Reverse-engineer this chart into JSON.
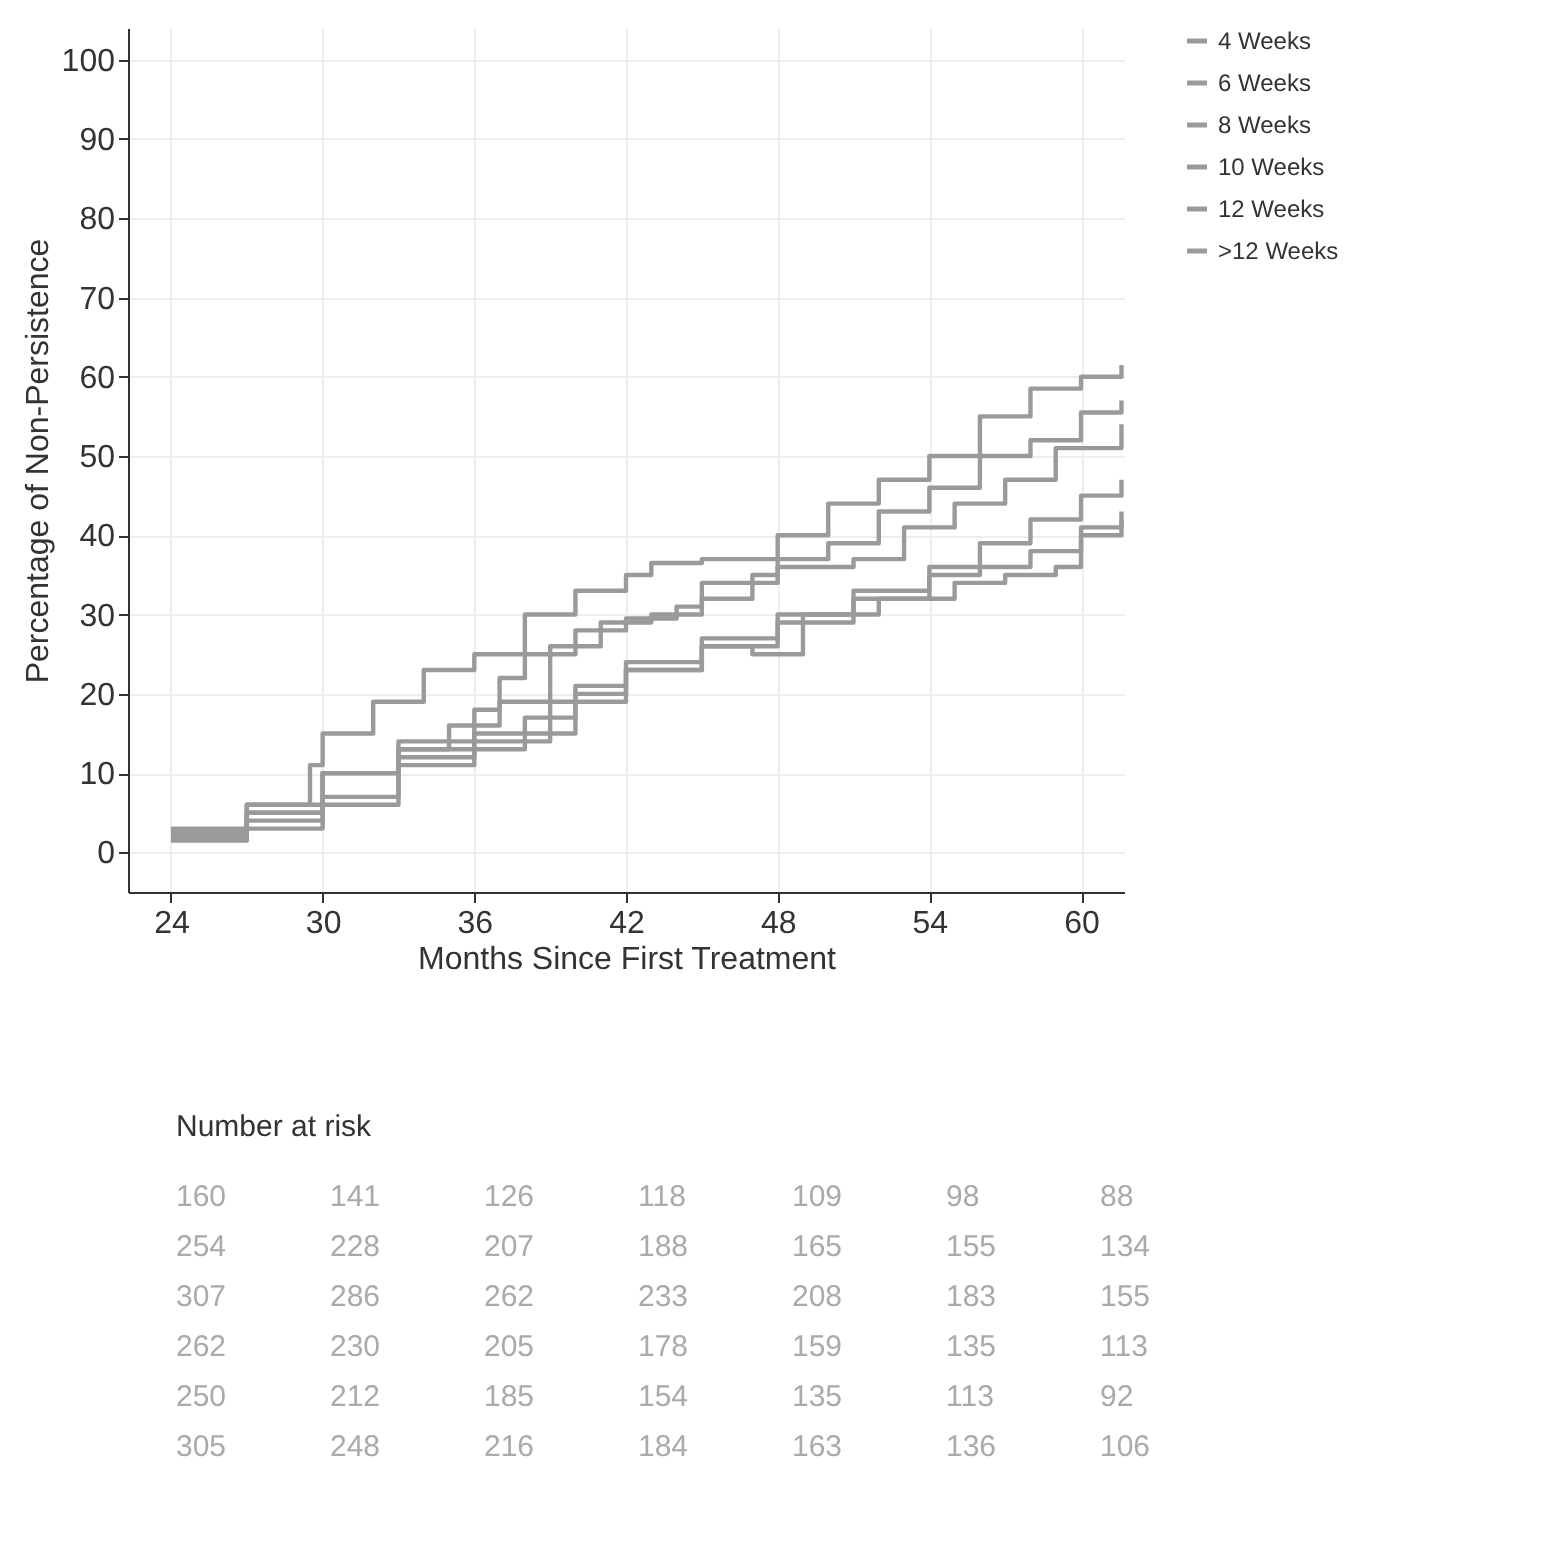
{
  "chart_data": {
    "type": "step",
    "xlabel": "Months Since First Treatment",
    "ylabel": "Percentage of Non-Persistence",
    "xlim": [
      22.3,
      61.7
    ],
    "xticks": [
      24,
      30,
      36,
      42,
      48,
      54,
      60
    ],
    "ylim": [
      -5,
      104
    ],
    "yticks": [
      0,
      10,
      20,
      30,
      40,
      50,
      60,
      70,
      80,
      90,
      100
    ],
    "grid": true,
    "legend": "right",
    "line_style": "solid",
    "marker": "none",
    "annotations": [
      "Number at risk",
      "160 141 126 118 109 98 88",
      "254 228 207 188 165 155 134",
      "307 286 262 233 208 183 155",
      "262 230 205 178 159 135 113",
      "250 212 185 154 135 113 92",
      "305 248 216 184 163 136 106"
    ],
    "series": [
      {
        "name": "4 Weeks",
        "color": "#9a9a9a",
        "x": [
          24,
          27,
          29.5,
          30,
          32,
          34,
          36,
          38,
          40,
          42,
          43,
          45,
          48,
          50,
          52,
          54,
          56,
          58,
          60,
          61.6
        ],
        "values": [
          3,
          6,
          11,
          15,
          19,
          23,
          25,
          30,
          33,
          35,
          36.5,
          37,
          40,
          44,
          47,
          50,
          55,
          58.5,
          60,
          61.5
        ]
      },
      {
        "name": "6 Weeks",
        "color": "#9a9a9a",
        "x": [
          24,
          27,
          30,
          33,
          35,
          36,
          37,
          38,
          40,
          42,
          44,
          45,
          48,
          50,
          52,
          54,
          56,
          58,
          60,
          61.6
        ],
        "values": [
          2.5,
          6,
          10,
          13,
          16,
          18,
          22,
          25,
          28,
          29.5,
          31,
          34,
          37,
          39,
          43,
          46,
          50,
          52,
          55.5,
          57
        ]
      },
      {
        "name": "8 Weeks",
        "color": "#9a9a9a",
        "x": [
          24,
          27,
          30,
          33,
          36,
          37,
          39,
          41,
          43,
          45,
          47,
          48,
          51,
          53,
          55,
          57,
          59,
          61.6
        ],
        "values": [
          2,
          5,
          10,
          14,
          16,
          19,
          26,
          29,
          30,
          32,
          35,
          36,
          37,
          41,
          44,
          47,
          51,
          54
        ]
      },
      {
        "name": "10 Weeks",
        "color": "#9a9a9a",
        "x": [
          24,
          27,
          30,
          33,
          36,
          38,
          40,
          42,
          45,
          48,
          51,
          54,
          56,
          58,
          60,
          61.6
        ],
        "values": [
          2,
          4,
          7,
          12,
          15,
          17,
          21,
          23,
          27,
          30,
          33,
          36,
          39,
          42,
          45,
          47
        ]
      },
      {
        "name": "12 Weeks",
        "color": "#9a9a9a",
        "x": [
          24,
          27,
          30,
          33,
          36,
          39,
          42,
          45,
          48,
          51,
          54,
          56,
          58,
          60,
          61.6
        ],
        "values": [
          2.5,
          5,
          10,
          13,
          14,
          19,
          23,
          26,
          29,
          32,
          35,
          36,
          38,
          41,
          43
        ]
      },
      {
        "name": ">12 Weeks",
        "color": "#9a9a9a",
        "x": [
          24,
          27,
          30,
          33,
          36,
          38,
          40,
          42,
          45,
          47,
          49,
          52,
          55,
          57,
          59,
          60,
          61.6
        ],
        "values": [
          1.5,
          3,
          6,
          11,
          13,
          15,
          20,
          24,
          26,
          25,
          30,
          32,
          34,
          35,
          36,
          40,
          42
        ]
      }
    ]
  }
}
